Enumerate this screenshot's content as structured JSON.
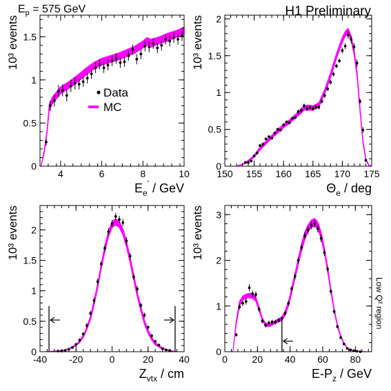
{
  "header": {
    "energy_label": "E",
    "energy_sub": "p",
    "energy_value": " = 575 GeV",
    "collab": "H1 Preliminary",
    "region": "Low Q² region"
  },
  "legend": {
    "data_label": "Data",
    "mc_label": "MC"
  },
  "colors": {
    "mc": "#ff00ff",
    "data": "#000000",
    "cut": "#000000"
  },
  "chart_data": [
    {
      "type": "line",
      "id": "ee",
      "xlabel": "E",
      "xlabel_sub": "e",
      "xlabel_prime": "'",
      "xlabel_unit": " / GeV",
      "ylabel": "10³ events",
      "xlim": [
        3,
        10
      ],
      "ylim": [
        0,
        1.75
      ],
      "xticks": [
        "4",
        "6",
        "8",
        "10"
      ],
      "yticks": [
        "0",
        "0.5",
        "1",
        "1.5"
      ],
      "series": [
        {
          "name": "MC",
          "kind": "band",
          "x": [
            3.05,
            3.2,
            3.35,
            3.45,
            3.6,
            3.8,
            4.0,
            4.4,
            4.8,
            5.2,
            5.6,
            6.0,
            6.4,
            6.8,
            7.2,
            7.6,
            8.0,
            8.2,
            8.4,
            8.8,
            9.2,
            9.6,
            10.0
          ],
          "lo": [
            0.0,
            0.15,
            0.4,
            0.65,
            0.72,
            0.78,
            0.84,
            0.9,
            0.97,
            1.05,
            1.12,
            1.17,
            1.2,
            1.23,
            1.27,
            1.31,
            1.37,
            1.4,
            1.38,
            1.42,
            1.45,
            1.49,
            1.53
          ],
          "hi": [
            0.0,
            0.18,
            0.44,
            0.72,
            0.8,
            0.86,
            0.92,
            0.98,
            1.05,
            1.13,
            1.2,
            1.25,
            1.28,
            1.31,
            1.35,
            1.39,
            1.45,
            1.49,
            1.47,
            1.5,
            1.54,
            1.57,
            1.61
          ]
        },
        {
          "name": "Data",
          "kind": "points",
          "x": [
            3.3,
            3.5,
            3.7,
            3.9,
            4.1,
            4.3,
            4.5,
            4.7,
            4.9,
            5.1,
            5.3,
            5.5,
            5.7,
            5.9,
            6.1,
            6.3,
            6.5,
            6.7,
            6.9,
            7.1,
            7.3,
            7.5,
            7.7,
            7.9,
            8.1,
            8.3,
            8.5,
            8.7,
            8.9,
            9.1,
            9.3,
            9.5,
            9.7,
            9.9
          ],
          "y": [
            0.28,
            0.7,
            0.76,
            0.87,
            0.88,
            0.82,
            0.93,
            0.96,
            0.95,
            0.98,
            1.02,
            1.07,
            1.14,
            1.18,
            1.14,
            1.17,
            1.22,
            1.25,
            1.2,
            1.21,
            1.28,
            1.35,
            1.24,
            1.3,
            1.39,
            1.38,
            1.42,
            1.37,
            1.4,
            1.47,
            1.45,
            1.49,
            1.47,
            1.51
          ],
          "err": [
            0.04,
            0.06,
            0.07,
            0.07,
            0.07,
            0.07,
            0.07,
            0.07,
            0.06,
            0.06,
            0.06,
            0.06,
            0.06,
            0.06,
            0.06,
            0.06,
            0.06,
            0.06,
            0.06,
            0.06,
            0.06,
            0.06,
            0.06,
            0.06,
            0.06,
            0.06,
            0.06,
            0.06,
            0.06,
            0.06,
            0.06,
            0.06,
            0.06,
            0.06
          ]
        }
      ]
    },
    {
      "type": "line",
      "id": "theta",
      "xlabel": "Θ",
      "xlabel_sub": "e",
      "xlabel_unit": " / deg",
      "ylabel": "10³ events",
      "xlim": [
        150,
        175
      ],
      "ylim": [
        0,
        2.05
      ],
      "xticks": [
        "150",
        "155",
        "160",
        "165",
        "170",
        "175"
      ],
      "yticks": [
        "0",
        "0.5",
        "1",
        "1.5",
        "2"
      ],
      "series": [
        {
          "name": "MC",
          "kind": "band",
          "x": [
            152.0,
            153.0,
            154.0,
            155.0,
            156.0,
            157.0,
            158.0,
            159.0,
            160.0,
            161.0,
            162.0,
            163.0,
            163.5,
            164.0,
            165.0,
            166.0,
            167.0,
            168.0,
            169.0,
            170.0,
            170.5,
            171.0,
            171.5,
            172.0,
            172.5,
            173.0,
            173.5,
            174.0,
            174.5,
            175.0
          ],
          "lo": [
            0.0,
            0.02,
            0.06,
            0.12,
            0.22,
            0.3,
            0.38,
            0.45,
            0.52,
            0.58,
            0.65,
            0.72,
            0.76,
            0.76,
            0.76,
            0.8,
            0.98,
            1.2,
            1.46,
            1.68,
            1.76,
            1.8,
            1.7,
            1.52,
            1.22,
            0.75,
            0.32,
            0.08,
            0.01,
            0.0
          ],
          "hi": [
            0.0,
            0.03,
            0.08,
            0.15,
            0.26,
            0.34,
            0.42,
            0.5,
            0.57,
            0.63,
            0.7,
            0.78,
            0.82,
            0.83,
            0.82,
            0.86,
            1.04,
            1.27,
            1.53,
            1.75,
            1.83,
            1.87,
            1.77,
            1.59,
            1.29,
            0.8,
            0.36,
            0.1,
            0.02,
            0.0
          ]
        },
        {
          "name": "Data",
          "kind": "points",
          "x": [
            153.5,
            154.0,
            154.5,
            155.0,
            155.5,
            156.0,
            156.5,
            157.0,
            157.5,
            158.0,
            158.5,
            159.0,
            159.5,
            160.0,
            160.5,
            161.0,
            161.5,
            162.0,
            162.5,
            163.0,
            163.5,
            164.0,
            164.5,
            165.0,
            165.5,
            166.0,
            166.5,
            167.0,
            167.5,
            168.0,
            168.5,
            169.0,
            169.5,
            170.0,
            170.5,
            171.0,
            171.5,
            172.0,
            172.5,
            173.0,
            173.5,
            174.0
          ],
          "y": [
            0.05,
            0.05,
            0.07,
            0.14,
            0.18,
            0.28,
            0.3,
            0.37,
            0.4,
            0.38,
            0.45,
            0.5,
            0.49,
            0.56,
            0.6,
            0.59,
            0.65,
            0.66,
            0.74,
            0.76,
            0.82,
            0.78,
            0.8,
            0.78,
            0.8,
            0.8,
            0.88,
            0.96,
            1.05,
            1.14,
            1.25,
            1.36,
            1.43,
            1.57,
            1.63,
            1.78,
            1.72,
            1.62,
            1.4,
            0.88,
            0.49,
            0.08
          ],
          "err": [
            0.02,
            0.02,
            0.02,
            0.02,
            0.02,
            0.02,
            0.02,
            0.02,
            0.02,
            0.02,
            0.02,
            0.02,
            0.02,
            0.02,
            0.02,
            0.02,
            0.02,
            0.02,
            0.03,
            0.03,
            0.03,
            0.03,
            0.03,
            0.03,
            0.03,
            0.03,
            0.03,
            0.03,
            0.03,
            0.03,
            0.03,
            0.03,
            0.03,
            0.04,
            0.04,
            0.05,
            0.05,
            0.05,
            0.05,
            0.04,
            0.04,
            0.02
          ]
        }
      ]
    },
    {
      "type": "line",
      "id": "zvtx",
      "xlabel": "Z",
      "xlabel_sub": "vtx",
      "xlabel_unit": " / cm",
      "ylabel": "10³ events",
      "xlim": [
        -40,
        40
      ],
      "ylim": [
        0,
        2.4
      ],
      "xticks": [
        "-40",
        "-20",
        "0",
        "20",
        "40"
      ],
      "yticks": [
        "0",
        "0.5",
        "1",
        "1.5",
        "2"
      ],
      "cuts": [
        -35,
        35
      ],
      "cut_height": 0.75,
      "arrow_y": 0.52,
      "series": [
        {
          "name": "MC",
          "kind": "band",
          "x": [
            -36,
            -32,
            -28,
            -24,
            -20,
            -18,
            -16,
            -14,
            -12,
            -10,
            -8,
            -6,
            -4,
            -2,
            0,
            2,
            4,
            6,
            8,
            10,
            12,
            14,
            16,
            18,
            20,
            22,
            24,
            28,
            32,
            36
          ],
          "lo": [
            0.0,
            0.0,
            0.01,
            0.04,
            0.1,
            0.15,
            0.23,
            0.36,
            0.52,
            0.76,
            1.04,
            1.36,
            1.64,
            1.88,
            2.04,
            2.08,
            2.04,
            1.92,
            1.72,
            1.46,
            1.18,
            0.9,
            0.66,
            0.45,
            0.3,
            0.19,
            0.11,
            0.04,
            0.01,
            0.0
          ],
          "hi": [
            0.0,
            0.01,
            0.02,
            0.05,
            0.12,
            0.18,
            0.27,
            0.4,
            0.58,
            0.84,
            1.12,
            1.44,
            1.74,
            1.98,
            2.14,
            2.18,
            2.14,
            2.02,
            1.82,
            1.56,
            1.28,
            0.98,
            0.74,
            0.52,
            0.36,
            0.24,
            0.15,
            0.06,
            0.02,
            0.0
          ]
        },
        {
          "name": "Data",
          "kind": "points",
          "x": [
            -30,
            -28,
            -26,
            -24,
            -22,
            -20,
            -18,
            -16,
            -14,
            -12,
            -10,
            -8,
            -6,
            -4,
            -2,
            0,
            2,
            4,
            6,
            8,
            10,
            12,
            14,
            16,
            18,
            20,
            22,
            24,
            26,
            28,
            30,
            32
          ],
          "y": [
            0.01,
            0.01,
            0.02,
            0.04,
            0.07,
            0.12,
            0.19,
            0.29,
            0.43,
            0.63,
            0.84,
            1.15,
            1.44,
            1.7,
            1.97,
            2.1,
            2.22,
            2.17,
            2.12,
            1.82,
            1.57,
            1.23,
            1.03,
            0.76,
            0.6,
            0.4,
            0.26,
            0.17,
            0.11,
            0.05,
            0.03,
            0.02
          ],
          "err": [
            0.01,
            0.01,
            0.01,
            0.02,
            0.02,
            0.02,
            0.03,
            0.03,
            0.04,
            0.04,
            0.05,
            0.05,
            0.05,
            0.06,
            0.06,
            0.06,
            0.06,
            0.06,
            0.06,
            0.06,
            0.05,
            0.05,
            0.05,
            0.04,
            0.04,
            0.03,
            0.03,
            0.02,
            0.02,
            0.02,
            0.01,
            0.01
          ]
        }
      ]
    },
    {
      "type": "line",
      "id": "epz",
      "xlabel": "E-P",
      "xlabel_sub": "z",
      "xlabel_unit": " / GeV",
      "ylabel": "10³ events",
      "xlim": [
        0,
        90
      ],
      "ylim": [
        0,
        3.2
      ],
      "xticks": [
        "0",
        "20",
        "40",
        "60",
        "80"
      ],
      "yticks": [
        "0",
        "1",
        "2",
        "3"
      ],
      "cuts": [
        35
      ],
      "cut_height": 0.7,
      "arrow_y": 0.23,
      "series": [
        {
          "name": "MC",
          "kind": "band",
          "x": [
            5,
            7,
            9,
            11,
            13,
            15,
            17,
            19,
            21,
            23,
            25,
            27,
            29,
            31,
            33,
            35,
            37,
            39,
            41,
            43,
            45,
            47,
            49,
            51,
            53,
            55,
            57,
            59,
            61,
            63,
            65,
            67,
            69,
            71,
            73,
            75,
            77,
            79,
            81,
            83,
            85,
            87
          ],
          "lo": [
            0.0,
            0.6,
            1.0,
            1.13,
            1.17,
            1.18,
            1.17,
            1.1,
            0.9,
            0.68,
            0.56,
            0.55,
            0.58,
            0.62,
            0.65,
            0.68,
            0.8,
            1.0,
            1.28,
            1.6,
            1.9,
            2.2,
            2.45,
            2.62,
            2.72,
            2.75,
            2.68,
            2.48,
            2.16,
            1.75,
            1.3,
            0.88,
            0.55,
            0.32,
            0.17,
            0.08,
            0.04,
            0.02,
            0.01,
            0.0,
            0.0,
            0.0
          ],
          "hi": [
            0.0,
            0.68,
            1.1,
            1.22,
            1.26,
            1.28,
            1.27,
            1.2,
            0.98,
            0.74,
            0.62,
            0.61,
            0.64,
            0.68,
            0.72,
            0.76,
            0.9,
            1.1,
            1.4,
            1.72,
            2.04,
            2.36,
            2.62,
            2.78,
            2.88,
            2.92,
            2.84,
            2.62,
            2.28,
            1.86,
            1.38,
            0.94,
            0.6,
            0.36,
            0.19,
            0.09,
            0.05,
            0.02,
            0.01,
            0.0,
            0.0,
            0.0
          ]
        },
        {
          "name": "Data",
          "kind": "points",
          "x": [
            7,
            9,
            11,
            13,
            15,
            17,
            19,
            21,
            23,
            25,
            27,
            29,
            31,
            33,
            35,
            37,
            39,
            41,
            43,
            45,
            47,
            49,
            51,
            53,
            55,
            57,
            59,
            61,
            63,
            65,
            67,
            69,
            71,
            73,
            75,
            77,
            79,
            81,
            83
          ],
          "y": [
            0.37,
            0.98,
            1.06,
            1.1,
            1.4,
            1.27,
            1.25,
            0.93,
            0.67,
            0.58,
            0.63,
            0.65,
            0.65,
            0.69,
            0.73,
            0.84,
            1.06,
            1.38,
            1.65,
            2.0,
            2.28,
            2.54,
            2.66,
            2.76,
            2.8,
            2.69,
            2.48,
            2.17,
            1.81,
            1.32,
            0.88,
            0.55,
            0.31,
            0.17,
            0.07,
            0.04,
            0.02,
            0.01,
            0.0
          ],
          "err": [
            0.04,
            0.06,
            0.06,
            0.07,
            0.08,
            0.07,
            0.07,
            0.06,
            0.05,
            0.05,
            0.05,
            0.05,
            0.05,
            0.05,
            0.05,
            0.05,
            0.06,
            0.06,
            0.07,
            0.07,
            0.07,
            0.08,
            0.08,
            0.08,
            0.08,
            0.08,
            0.08,
            0.07,
            0.07,
            0.06,
            0.05,
            0.04,
            0.03,
            0.03,
            0.02,
            0.02,
            0.01,
            0.01,
            0.01
          ]
        }
      ]
    }
  ]
}
